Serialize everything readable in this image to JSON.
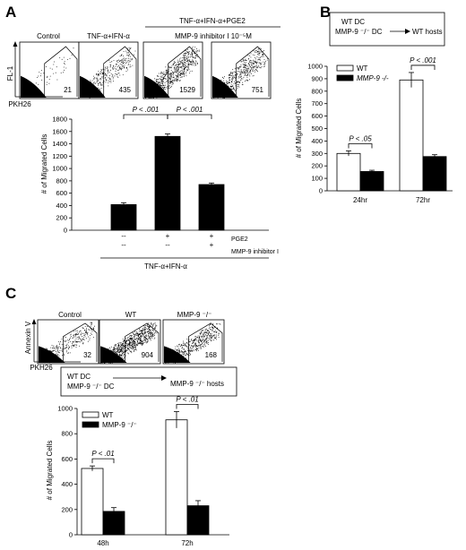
{
  "panels": {
    "A": {
      "letter": "A",
      "flow_titles": [
        "Control",
        "TNF-α+IFN-α",
        "TNF-α+IFN-α+PGE2",
        "MMP-9 inhibitor I 10⁻⁵M"
      ],
      "flow_counts": [
        "21",
        "435",
        "1529",
        "751"
      ],
      "flow_ylabel": "FL-1",
      "flow_xlabel": "PKH26",
      "treat_rows": [
        {
          "label": "PGE2",
          "marks": [
            "--",
            "+",
            "+"
          ]
        },
        {
          "label": "MMP-9 inhibitor I",
          "marks": [
            "--",
            "--",
            "+"
          ]
        }
      ],
      "treat_base": "TNF-α+IFN-α"
    },
    "B": {
      "letter": "B",
      "scheme_line1": "WT DC",
      "scheme_line2": "MMP-9 ⁻/⁻ DC",
      "scheme_target": "WT hosts"
    },
    "C": {
      "letter": "C",
      "flow_titles": [
        "Control",
        "WT",
        "MMP-9 ⁻/⁻"
      ],
      "flow_counts": [
        "32",
        "904",
        "168"
      ],
      "flow_ylabel": "Annexin V",
      "flow_xlabel": "PKH26",
      "scheme_line1": "WT DC",
      "scheme_line2": "MMP-9 ⁻/⁻ DC",
      "scheme_target": "MMP-9 ⁻/⁻ hosts"
    }
  },
  "chart_data": [
    {
      "id": "A",
      "type": "bar",
      "categories": [
        "TNF-α+IFN-α",
        "+PGE2",
        "+PGE2+MMP-9 inhibitor I"
      ],
      "values": [
        415,
        1520,
        740
      ],
      "errors": [
        30,
        40,
        25
      ],
      "ylabel": "# of Migrated Cells",
      "ylim": [
        0,
        1800
      ],
      "yticks": [
        0,
        200,
        400,
        600,
        800,
        1000,
        1200,
        1400,
        1600,
        1800
      ],
      "colors": [
        "#000000",
        "#000000",
        "#000000"
      ],
      "significance": [
        {
          "from": 0,
          "to": 1,
          "label": "P < .001"
        },
        {
          "from": 1,
          "to": 2,
          "label": "P < .001"
        }
      ]
    },
    {
      "id": "B",
      "type": "bar",
      "categories": [
        "24hr",
        "72hr"
      ],
      "series": [
        {
          "name": "WT",
          "values": [
            300,
            890
          ],
          "errors": [
            20,
            60
          ],
          "color": "#ffffff"
        },
        {
          "name": "MMP-9 -/-",
          "values": [
            155,
            275
          ],
          "errors": [
            10,
            15
          ],
          "color": "#000000"
        }
      ],
      "ylabel": "# of Migrated Cells",
      "ylim": [
        0,
        1000
      ],
      "yticks": [
        0,
        100,
        200,
        300,
        400,
        500,
        600,
        700,
        800,
        900,
        1000
      ],
      "legend": "top-left",
      "significance": [
        {
          "group": 0,
          "label": "P < .05"
        },
        {
          "group": 1,
          "label": "P < .001"
        }
      ]
    },
    {
      "id": "C",
      "type": "bar",
      "categories": [
        "48h",
        "72h"
      ],
      "series": [
        {
          "name": "WT",
          "values": [
            525,
            910
          ],
          "errors": [
            20,
            65
          ],
          "color": "#ffffff"
        },
        {
          "name": "MMP-9 ⁻/⁻",
          "values": [
            185,
            230
          ],
          "errors": [
            30,
            40
          ],
          "color": "#000000"
        }
      ],
      "ylabel": "# of Migrated Cells",
      "ylim": [
        0,
        1000
      ],
      "yticks": [
        0,
        200,
        400,
        600,
        800,
        1000
      ],
      "legend": "top-left",
      "significance": [
        {
          "group": 0,
          "label": "P < .01"
        },
        {
          "group": 1,
          "label": "P < .01"
        }
      ]
    }
  ]
}
